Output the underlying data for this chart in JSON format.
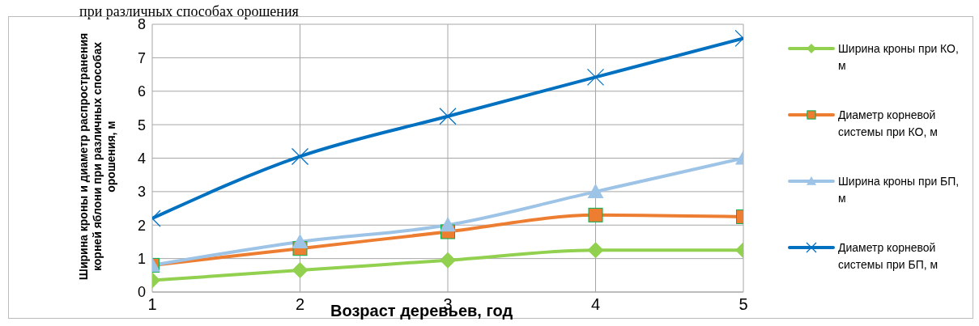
{
  "chart_data": {
    "type": "line",
    "title": "при различных способах орошения",
    "xlabel": "Возраст  деревьев, год",
    "ylabel": "Ширина кроны и диаметр распространения корней яблони при различных способах  орошения, м",
    "x": [
      1,
      2,
      3,
      4,
      5
    ],
    "xlim": [
      1,
      5
    ],
    "xticks": [
      1,
      2,
      3,
      4,
      5
    ],
    "ylim": [
      0,
      8
    ],
    "yticks": [
      0,
      1,
      2,
      3,
      4,
      5,
      6,
      7,
      8
    ],
    "grid": true,
    "legend": "right",
    "series": [
      {
        "name": "Ширина кроны при КО, м",
        "color": "#92d050",
        "marker": "diamond",
        "values": [
          0.35,
          0.65,
          0.95,
          1.25,
          1.25
        ]
      },
      {
        "name": "Диаметр корневой системы при КО, м",
        "color": "#ed7d31",
        "marker": "square",
        "values": [
          0.8,
          1.3,
          1.8,
          2.3,
          2.25
        ]
      },
      {
        "name": "Ширина кроны при БП, м",
        "color": "#9dc3e6",
        "marker": "triangle",
        "values": [
          0.8,
          1.5,
          2.0,
          3.0,
          4.0
        ]
      },
      {
        "name": "Диаметр корневой системы при БП, м",
        "color": "#0070c0",
        "marker": "cross",
        "values": [
          2.2,
          4.05,
          5.25,
          6.42,
          7.58
        ]
      }
    ]
  }
}
